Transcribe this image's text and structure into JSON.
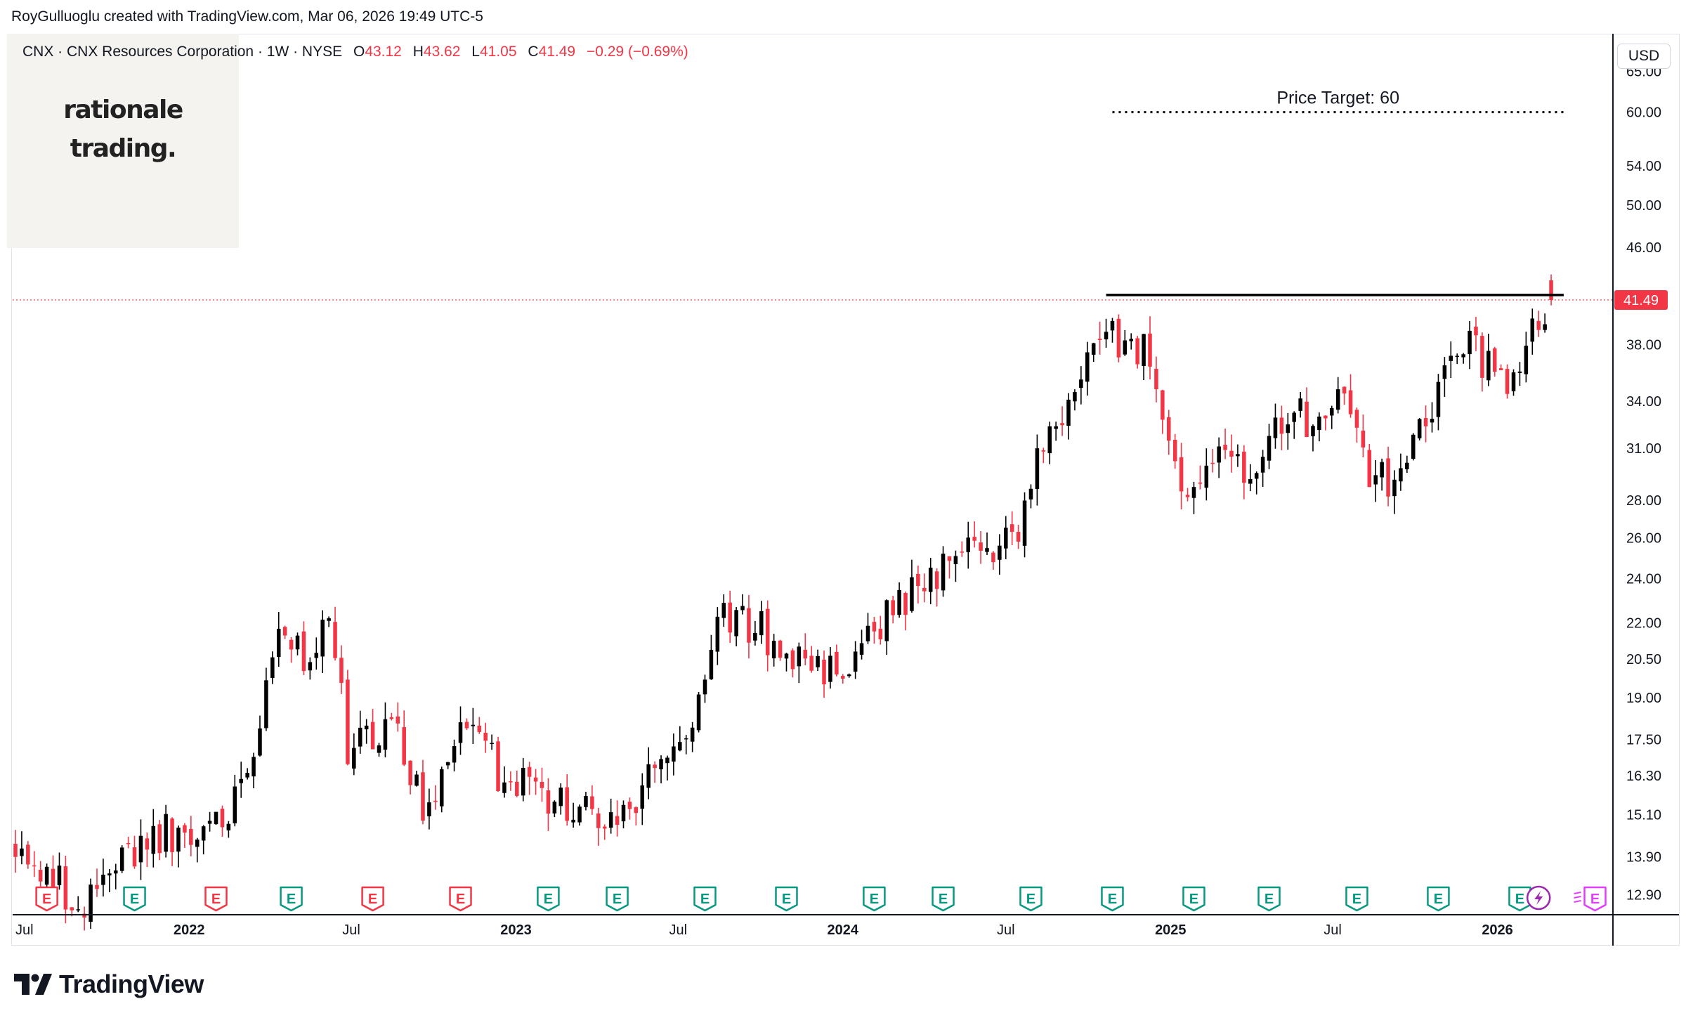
{
  "header": {
    "attribution": "RoyGulluoglu created with TradingView.com, Mar 06, 2026 19:49 UTC-5"
  },
  "legend": {
    "symbol": "CNX · CNX Resources Corporation · 1W · NYSE",
    "o_label": "O",
    "o_value": "43.12",
    "h_label": "H",
    "h_value": "43.62",
    "l_label": "L",
    "l_value": "41.05",
    "c_label": "C",
    "c_value": "41.49",
    "change": "−0.29 (−0.69%)"
  },
  "watermark": {
    "line1": "rationale",
    "line2": "trading."
  },
  "currency": "USD",
  "footer": {
    "brand": "TradingView"
  },
  "colors": {
    "up": "#000000",
    "down": "#f23645",
    "earnings_past_beat": "#089981",
    "earnings_past_miss": "#f23645",
    "dividend": "#9c27b0",
    "future_event": "#e040fb",
    "price_line": "#f23645"
  },
  "chart_data": {
    "type": "candlestick",
    "timeframe": "1W",
    "scale": "log",
    "ylim": [
      12.4,
      70
    ],
    "y_ticks": [
      65,
      60,
      54,
      50,
      46,
      42,
      38,
      34,
      31,
      28,
      26,
      24,
      22,
      20.5,
      19,
      17.5,
      16.3,
      15.1,
      13.9,
      12.9
    ],
    "y_tick_labels": [
      "65.00",
      "60.00",
      "54.00",
      "50.00",
      "46.00",
      "",
      "38.00",
      "34.00",
      "31.00",
      "28.00",
      "26.00",
      "24.00",
      "22.00",
      "20.50",
      "19.00",
      "17.50",
      "16.30",
      "15.10",
      "13.90",
      "12.90"
    ],
    "x_range": [
      "2021-06-21",
      "2026-05-10"
    ],
    "x_ticks": [
      {
        "date": "2021-07-01",
        "label": "Jul",
        "bold": false
      },
      {
        "date": "2022-01-01",
        "label": "2022",
        "bold": true
      },
      {
        "date": "2022-07-01",
        "label": "Jul",
        "bold": false
      },
      {
        "date": "2023-01-01",
        "label": "2023",
        "bold": true
      },
      {
        "date": "2023-07-01",
        "label": "Jul",
        "bold": false
      },
      {
        "date": "2024-01-01",
        "label": "2024",
        "bold": true
      },
      {
        "date": "2024-07-01",
        "label": "Jul",
        "bold": false
      },
      {
        "date": "2025-01-01",
        "label": "2025",
        "bold": true
      },
      {
        "date": "2025-07-01",
        "label": "Jul",
        "bold": false
      },
      {
        "date": "2026-01-01",
        "label": "2026",
        "bold": true
      }
    ],
    "anchors": [
      [
        "2021-06-21",
        14.2
      ],
      [
        "2021-08-30",
        12.7
      ],
      [
        "2021-10-25",
        13.9
      ],
      [
        "2021-11-29",
        14.6
      ],
      [
        "2022-01-17",
        14.4
      ],
      [
        "2022-03-07",
        15.9
      ],
      [
        "2022-04-11",
        21.3
      ],
      [
        "2022-05-09",
        20.5
      ],
      [
        "2022-06-06",
        22.6
      ],
      [
        "2022-06-27",
        17.3
      ],
      [
        "2022-08-22",
        17.6
      ],
      [
        "2022-09-19",
        15.1
      ],
      [
        "2022-10-24",
        17.5
      ],
      [
        "2022-11-14",
        17.4
      ],
      [
        "2022-12-19",
        16.2
      ],
      [
        "2023-02-06",
        15.7
      ],
      [
        "2023-03-13",
        15.3
      ],
      [
        "2023-04-24",
        14.9
      ],
      [
        "2023-06-05",
        16.3
      ],
      [
        "2023-07-10",
        17.8
      ],
      [
        "2023-08-21",
        22.5
      ],
      [
        "2023-10-02",
        21.7
      ],
      [
        "2023-11-13",
        20.3
      ],
      [
        "2023-12-25",
        19.9
      ],
      [
        "2024-02-12",
        22.1
      ],
      [
        "2024-03-25",
        23.7
      ],
      [
        "2024-04-29",
        25.1
      ],
      [
        "2024-06-03",
        25.3
      ],
      [
        "2024-07-15",
        26.4
      ],
      [
        "2024-08-12",
        31.5
      ],
      [
        "2024-09-16",
        35.3
      ],
      [
        "2024-10-21",
        40.3
      ],
      [
        "2024-11-11",
        37.0
      ],
      [
        "2024-12-02",
        37.4
      ],
      [
        "2025-01-06",
        30.0
      ],
      [
        "2025-01-27",
        28.3
      ],
      [
        "2025-03-03",
        30.4
      ],
      [
        "2025-04-07",
        30.0
      ],
      [
        "2025-05-05",
        32.5
      ],
      [
        "2025-06-16",
        33.2
      ],
      [
        "2025-07-14",
        33.6
      ],
      [
        "2025-08-18",
        28.9
      ],
      [
        "2025-09-15",
        29.2
      ],
      [
        "2025-10-20",
        33.2
      ],
      [
        "2025-11-24",
        38.9
      ],
      [
        "2025-12-15",
        36.6
      ],
      [
        "2026-01-12",
        35.8
      ],
      [
        "2026-02-09",
        39.0
      ],
      [
        "2026-03-02",
        41.78
      ]
    ],
    "last_candle": {
      "date": "2026-03-02",
      "open": 43.12,
      "high": 43.62,
      "low": 41.05,
      "close": 41.49
    },
    "last_price": 41.49,
    "resistance_line": {
      "price": 41.9,
      "from": "2024-10-21",
      "to": "2026-03-16"
    },
    "price_target": {
      "label": "Price Target: 60",
      "price": 60,
      "from": "2024-10-28",
      "to": "2026-03-16"
    },
    "events": [
      {
        "date": "2021-07-26",
        "type": "E",
        "kind": "miss"
      },
      {
        "date": "2021-11-01",
        "type": "E",
        "kind": "beat"
      },
      {
        "date": "2022-01-31",
        "type": "E",
        "kind": "miss"
      },
      {
        "date": "2022-04-25",
        "type": "E",
        "kind": "beat"
      },
      {
        "date": "2022-07-25",
        "type": "E",
        "kind": "miss"
      },
      {
        "date": "2022-10-31",
        "type": "E",
        "kind": "miss"
      },
      {
        "date": "2023-02-06",
        "type": "E",
        "kind": "beat"
      },
      {
        "date": "2023-04-24",
        "type": "E",
        "kind": "beat"
      },
      {
        "date": "2023-07-31",
        "type": "E",
        "kind": "beat"
      },
      {
        "date": "2023-10-30",
        "type": "E",
        "kind": "beat"
      },
      {
        "date": "2024-02-05",
        "type": "E",
        "kind": "beat"
      },
      {
        "date": "2024-04-22",
        "type": "E",
        "kind": "beat"
      },
      {
        "date": "2024-07-29",
        "type": "E",
        "kind": "beat"
      },
      {
        "date": "2024-10-28",
        "type": "E",
        "kind": "beat"
      },
      {
        "date": "2025-01-27",
        "type": "E",
        "kind": "beat"
      },
      {
        "date": "2025-04-21",
        "type": "E",
        "kind": "beat"
      },
      {
        "date": "2025-07-28",
        "type": "E",
        "kind": "beat"
      },
      {
        "date": "2025-10-27",
        "type": "E",
        "kind": "beat"
      },
      {
        "date": "2026-01-26",
        "type": "E",
        "kind": "beat"
      },
      {
        "date": "2026-02-16",
        "type": "D",
        "kind": "dividend"
      },
      {
        "date": "2026-04-20",
        "type": "E",
        "kind": "future"
      }
    ]
  }
}
